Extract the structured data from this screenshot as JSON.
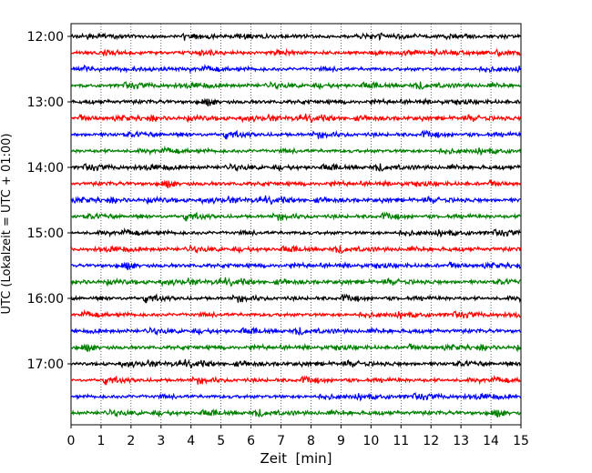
{
  "chart_data": {
    "type": "line",
    "xlabel": "Zeit  [min]",
    "ylabel": "UTC (Lokalzeit = UTC + 01:00)",
    "xlim": [
      0,
      15
    ],
    "x_ticks": [
      0,
      1,
      2,
      3,
      4,
      5,
      6,
      7,
      8,
      9,
      10,
      11,
      12,
      13,
      14,
      15
    ],
    "y_tick_labels": [
      "12:00",
      "13:00",
      "14:00",
      "15:00",
      "16:00",
      "17:00"
    ],
    "grid": "vertical dotted",
    "trace_colors": [
      "#000000",
      "#ff0000",
      "#0000ff",
      "#008000"
    ],
    "trace_start_times": [
      "12:00",
      "12:15",
      "12:30",
      "12:45",
      "13:00",
      "13:15",
      "13:30",
      "13:45",
      "14:00",
      "14:15",
      "14:30",
      "14:45",
      "15:00",
      "15:15",
      "15:30",
      "15:45",
      "16:00",
      "16:15",
      "16:30",
      "16:45",
      "17:00",
      "17:15",
      "17:30",
      "17:45"
    ],
    "trace_minutes_per_line": 15
  }
}
